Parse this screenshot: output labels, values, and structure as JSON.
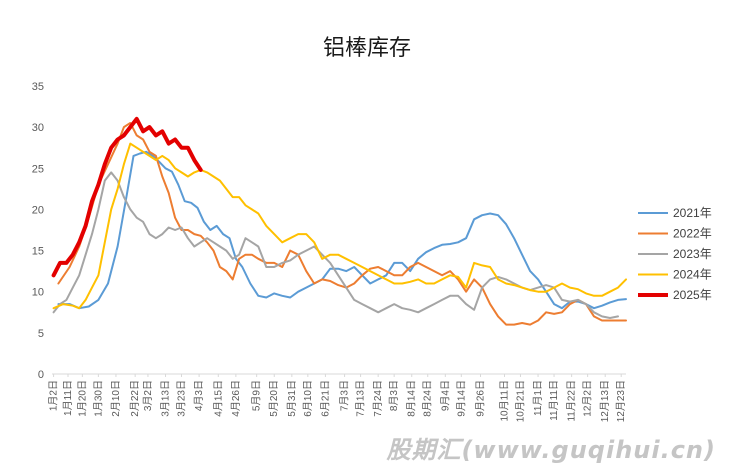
{
  "chart_data": {
    "type": "line",
    "title": "铝棒库存",
    "ylim": [
      0,
      35
    ],
    "yticks": [
      0,
      5,
      10,
      15,
      20,
      25,
      30,
      35
    ],
    "grid": false,
    "legend_position": "right",
    "xlim": [
      1,
      360
    ],
    "x_tick_labels": [
      "1月2日",
      "1月11日",
      "1月20日",
      "1月30日",
      "2月10日",
      "2月22日",
      "3月2日",
      "3月13日",
      "3月23日",
      "4月3日",
      "4月15日",
      "4月26日",
      "5月9日",
      "5月20日",
      "5月31日",
      "6月10日",
      "6月21日",
      "7月3日",
      "7月13日",
      "7月24日",
      "8月3日",
      "8月14日",
      "8月24日",
      "9月4日",
      "9月14日",
      "9月26日",
      "10月11日",
      "10月21日",
      "11月1日",
      "11月11日",
      "11月22日",
      "12月2日",
      "12月13日",
      "12月23日"
    ],
    "x_tick_days": [
      2,
      11,
      20,
      30,
      41,
      53,
      61,
      72,
      82,
      93,
      105,
      116,
      129,
      140,
      151,
      161,
      172,
      184,
      194,
      205,
      215,
      226,
      236,
      247,
      257,
      269,
      284,
      294,
      305,
      315,
      326,
      336,
      347,
      357
    ],
    "series": [
      {
        "name": "2021年",
        "color": "#5B9BD5",
        "width": 2,
        "x": [
          5,
          12,
          18,
          24,
          30,
          36,
          42,
          48,
          52,
          56,
          60,
          64,
          68,
          72,
          76,
          80,
          84,
          88,
          92,
          96,
          100,
          104,
          108,
          112,
          116,
          120,
          125,
          130,
          135,
          140,
          145,
          150,
          155,
          160,
          165,
          170,
          175,
          180,
          185,
          190,
          195,
          200,
          205,
          210,
          215,
          220,
          225,
          230,
          235,
          240,
          245,
          250,
          255,
          260,
          265,
          270,
          275,
          280,
          285,
          290,
          295,
          300,
          305,
          310,
          315,
          320,
          325,
          330,
          335,
          340,
          345,
          350,
          355,
          360
        ],
        "y": [
          8.5,
          8.5,
          8.0,
          8.2,
          9.0,
          11.0,
          15.5,
          22.0,
          26.5,
          26.8,
          27.0,
          26.5,
          25.8,
          25.0,
          24.6,
          23.0,
          21.0,
          20.8,
          20.2,
          18.5,
          17.5,
          18.0,
          17.0,
          16.5,
          14.0,
          13.0,
          11.0,
          9.5,
          9.3,
          9.8,
          9.5,
          9.3,
          10.0,
          10.5,
          11.0,
          11.5,
          12.8,
          12.8,
          12.5,
          13.0,
          12.0,
          11.0,
          11.5,
          12.0,
          13.5,
          13.5,
          12.5,
          14.0,
          14.8,
          15.3,
          15.7,
          15.8,
          16.0,
          16.5,
          18.8,
          19.3,
          19.5,
          19.3,
          18.2,
          16.5,
          14.5,
          12.5,
          11.5,
          10.0,
          8.5,
          8.0,
          8.8,
          8.8,
          8.5,
          8.0,
          8.3,
          8.7,
          9.0,
          9.1
        ]
      },
      {
        "name": "2022年",
        "color": "#ED7D31",
        "width": 2,
        "x": [
          5,
          12,
          18,
          24,
          30,
          36,
          42,
          46,
          50,
          54,
          58,
          62,
          66,
          70,
          74,
          78,
          82,
          86,
          90,
          94,
          98,
          102,
          106,
          110,
          114,
          118,
          122,
          126,
          130,
          135,
          140,
          145,
          150,
          155,
          160,
          165,
          170,
          175,
          180,
          185,
          190,
          195,
          200,
          205,
          210,
          215,
          220,
          225,
          230,
          235,
          240,
          245,
          250,
          255,
          260,
          265,
          270,
          275,
          280,
          285,
          290,
          295,
          300,
          305,
          310,
          315,
          320,
          325,
          330,
          335,
          340,
          345,
          350,
          355,
          360
        ],
        "y": [
          11.0,
          13.0,
          15.5,
          19.0,
          23.0,
          25.5,
          28.0,
          30.0,
          30.5,
          29.0,
          28.5,
          27.0,
          26.5,
          24.0,
          22.0,
          19.0,
          17.5,
          17.5,
          17.0,
          16.8,
          16.0,
          15.0,
          13.0,
          12.5,
          11.5,
          14.0,
          14.5,
          14.5,
          14.0,
          13.5,
          13.5,
          13.0,
          15.0,
          14.5,
          12.5,
          11.0,
          11.5,
          11.3,
          10.8,
          10.5,
          11.0,
          12.0,
          12.8,
          13.0,
          12.5,
          12.0,
          12.0,
          13.0,
          13.5,
          13.0,
          12.5,
          12.0,
          12.5,
          11.5,
          10.0,
          11.5,
          10.5,
          8.5,
          7.0,
          6.0,
          6.0,
          6.2,
          6.0,
          6.5,
          7.5,
          7.3,
          7.5,
          8.5,
          9.0,
          8.5,
          7.0,
          6.5,
          6.5,
          6.5,
          6.5
        ]
      },
      {
        "name": "2023年",
        "color": "#A5A5A5",
        "width": 2,
        "x": [
          2,
          6,
          10,
          14,
          18,
          22,
          26,
          30,
          34,
          38,
          42,
          46,
          50,
          54,
          58,
          62,
          66,
          70,
          74,
          78,
          82,
          86,
          90,
          94,
          98,
          102,
          106,
          110,
          114,
          118,
          122,
          126,
          130,
          135,
          140,
          145,
          150,
          155,
          160,
          165,
          170,
          175,
          180,
          185,
          190,
          195,
          200,
          205,
          210,
          215,
          220,
          225,
          230,
          235,
          240,
          245,
          250,
          255,
          260,
          265,
          270,
          275,
          280,
          285,
          290,
          295,
          300,
          305,
          310,
          315,
          320,
          325,
          330,
          335,
          340,
          345,
          350,
          355
        ],
        "y": [
          7.5,
          8.5,
          9.0,
          10.5,
          12.0,
          14.5,
          17.0,
          20.0,
          23.5,
          24.5,
          23.5,
          21.5,
          20.0,
          19.0,
          18.5,
          17.0,
          16.5,
          17.0,
          17.8,
          17.5,
          17.8,
          16.5,
          15.5,
          16.0,
          16.5,
          16.0,
          15.5,
          15.0,
          14.0,
          14.5,
          16.5,
          16.0,
          15.5,
          13.0,
          13.0,
          13.5,
          13.8,
          14.5,
          15.0,
          15.5,
          14.5,
          13.5,
          12.0,
          10.5,
          9.0,
          8.5,
          8.0,
          7.5,
          8.0,
          8.5,
          8.0,
          7.8,
          7.5,
          8.0,
          8.5,
          9.0,
          9.5,
          9.5,
          8.5,
          7.8,
          10.5,
          11.5,
          11.8,
          11.5,
          11.0,
          10.5,
          10.2,
          10.5,
          10.8,
          10.5,
          9.0,
          8.8,
          9.0,
          8.5,
          7.5,
          7.0,
          6.8,
          7.0
        ]
      },
      {
        "name": "2024年",
        "color": "#FFC000",
        "width": 2,
        "x": [
          2,
          8,
          14,
          18,
          22,
          26,
          30,
          34,
          38,
          42,
          46,
          50,
          54,
          58,
          62,
          66,
          70,
          74,
          78,
          82,
          86,
          90,
          94,
          98,
          102,
          106,
          110,
          114,
          118,
          122,
          126,
          130,
          135,
          140,
          145,
          150,
          155,
          160,
          165,
          170,
          175,
          180,
          185,
          190,
          195,
          200,
          205,
          210,
          215,
          220,
          225,
          230,
          235,
          240,
          245,
          250,
          255,
          260,
          265,
          270,
          275,
          280,
          285,
          290,
          295,
          300,
          305,
          310,
          315,
          320,
          325,
          330,
          335,
          340,
          345,
          350,
          355,
          360
        ],
        "y": [
          8.0,
          8.5,
          8.3,
          8.0,
          9.0,
          10.5,
          12.0,
          16.0,
          20.0,
          22.5,
          25.5,
          28.0,
          27.5,
          27.0,
          26.5,
          26.0,
          26.5,
          26.0,
          25.0,
          24.5,
          24.0,
          24.5,
          24.8,
          24.5,
          24.0,
          23.5,
          22.5,
          21.5,
          21.5,
          20.5,
          20.0,
          19.5,
          18.0,
          17.0,
          16.0,
          16.5,
          17.0,
          17.0,
          16.0,
          14.0,
          14.5,
          14.5,
          14.0,
          13.5,
          13.0,
          12.5,
          12.0,
          11.5,
          11.0,
          11.0,
          11.2,
          11.5,
          11.0,
          11.0,
          11.5,
          12.0,
          11.8,
          10.5,
          13.5,
          13.2,
          13.0,
          11.5,
          11.0,
          10.8,
          10.5,
          10.2,
          10.0,
          10.0,
          10.5,
          11.0,
          10.5,
          10.3,
          9.8,
          9.5,
          9.5,
          10.0,
          10.5,
          11.5
        ]
      },
      {
        "name": "2025年",
        "color": "#E30000",
        "width": 4,
        "x": [
          2,
          6,
          10,
          14,
          18,
          22,
          26,
          30,
          34,
          38,
          42,
          46,
          50,
          54,
          58,
          62,
          66,
          70,
          74,
          78,
          82,
          86,
          90,
          94
        ],
        "y": [
          12.0,
          13.5,
          13.5,
          14.5,
          16.0,
          18.0,
          21.0,
          23.0,
          25.5,
          27.5,
          28.5,
          29.0,
          30.0,
          31.0,
          29.5,
          30.0,
          29.0,
          29.5,
          28.0,
          28.5,
          27.5,
          27.5,
          26.0,
          24.8
        ]
      }
    ]
  },
  "watermark": "股期汇(www.guqihui.cn)"
}
